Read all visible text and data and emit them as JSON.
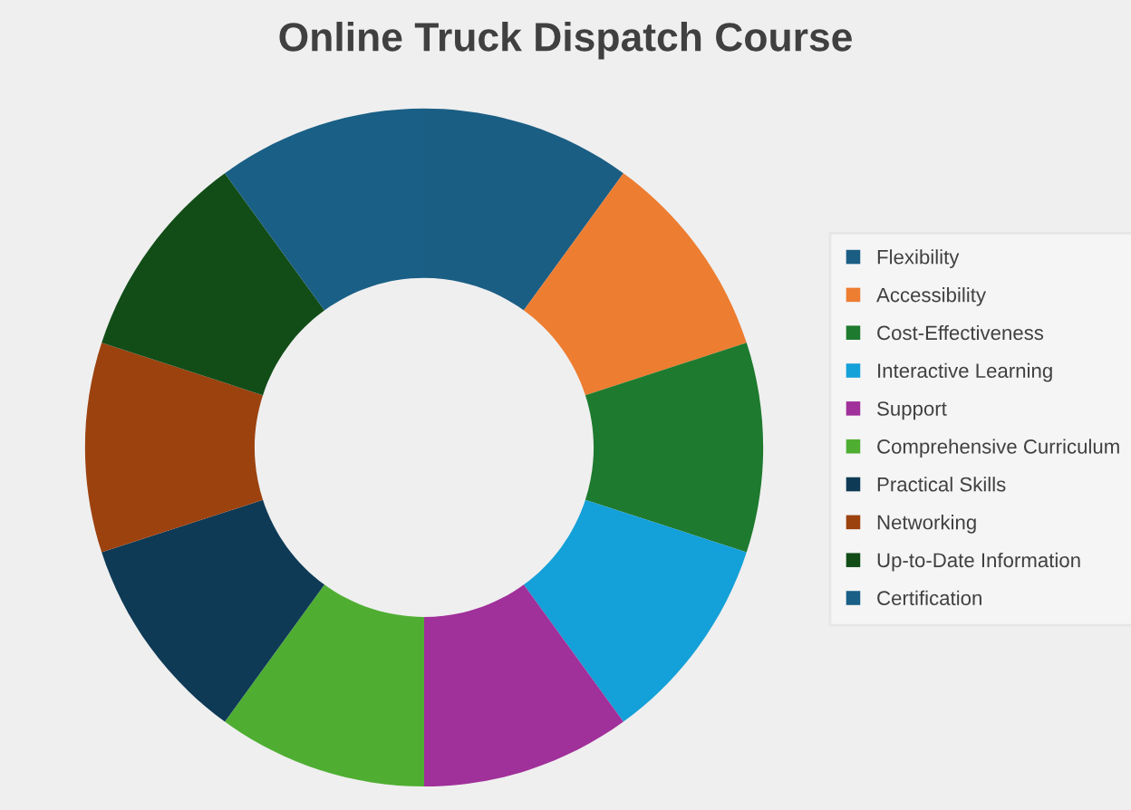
{
  "chart_data": {
    "type": "donut",
    "title": "Online Truck Dispatch Course",
    "categories": [
      "Flexibility",
      "Accessibility",
      "Cost-Effectiveness",
      "Interactive Learning",
      "Support",
      "Comprehensive Curriculum",
      "Practical Skills",
      "Networking",
      "Up-to-Date Information",
      "Certification"
    ],
    "values": [
      10,
      10,
      10,
      10,
      10,
      10,
      10,
      10,
      10,
      10
    ],
    "colors": [
      "#1b5e84",
      "#ed7d31",
      "#1e7a2e",
      "#14a0d8",
      "#a0309a",
      "#4fae32",
      "#0e3a56",
      "#9c420f",
      "#124d18",
      "#195f86"
    ],
    "legend": "right"
  }
}
